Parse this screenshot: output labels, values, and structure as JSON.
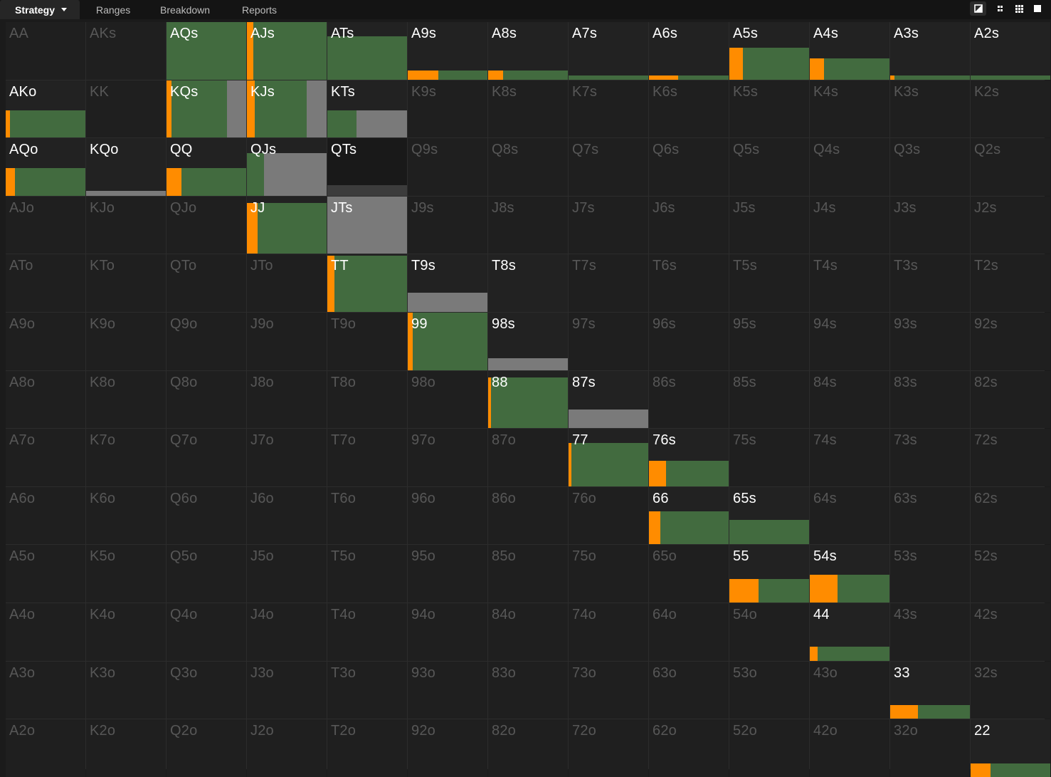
{
  "tabs": [
    {
      "label": "Strategy",
      "active": true,
      "has_dropdown": true
    },
    {
      "label": "Ranges",
      "active": false
    },
    {
      "label": "Breakdown",
      "active": false
    },
    {
      "label": "Reports",
      "active": false
    }
  ],
  "view_buttons": [
    {
      "icon": "contrast-square-icon",
      "active": true
    },
    {
      "icon": "compact-grid-icon",
      "active": false
    },
    {
      "icon": "grid-icon",
      "active": false
    },
    {
      "icon": "solid-square-icon",
      "active": false
    }
  ],
  "colors": {
    "raise": "#ff8c00",
    "call": "#426b3f",
    "fold": "#7a7a7a",
    "fold_dark": "#3c3c3c",
    "cell_bg": "#222222",
    "grid_line": "#2c2c2c",
    "text_on": "#ffffff",
    "text_off": "#575757"
  },
  "grid": {
    "rows": [
      [
        "AA",
        "AKs",
        "AQs",
        "AJs",
        "ATs",
        "A9s",
        "A8s",
        "A7s",
        "A6s",
        "A5s",
        "A4s",
        "A3s",
        "A2s"
      ],
      [
        "AKo",
        "KK",
        "KQs",
        "KJs",
        "KTs",
        "K9s",
        "K8s",
        "K7s",
        "K6s",
        "K5s",
        "K4s",
        "K3s",
        "K2s"
      ],
      [
        "AQo",
        "KQo",
        "QQ",
        "QJs",
        "QTs",
        "Q9s",
        "Q8s",
        "Q7s",
        "Q6s",
        "Q5s",
        "Q4s",
        "Q3s",
        "Q2s"
      ],
      [
        "AJo",
        "KJo",
        "QJo",
        "JJ",
        "JTs",
        "J9s",
        "J8s",
        "J7s",
        "J6s",
        "J5s",
        "J4s",
        "J3s",
        "J2s"
      ],
      [
        "ATo",
        "KTo",
        "QTo",
        "JTo",
        "TT",
        "T9s",
        "T8s",
        "T7s",
        "T6s",
        "T5s",
        "T4s",
        "T3s",
        "T2s"
      ],
      [
        "A9o",
        "K9o",
        "Q9o",
        "J9o",
        "T9o",
        "99",
        "98s",
        "97s",
        "96s",
        "95s",
        "94s",
        "93s",
        "92s"
      ],
      [
        "A8o",
        "K8o",
        "Q8o",
        "J8o",
        "T8o",
        "98o",
        "88",
        "87s",
        "86s",
        "85s",
        "84s",
        "83s",
        "82s"
      ],
      [
        "A7o",
        "K7o",
        "Q7o",
        "J7o",
        "T7o",
        "97o",
        "87o",
        "77",
        "76s",
        "75s",
        "74s",
        "73s",
        "72s"
      ],
      [
        "A6o",
        "K6o",
        "Q6o",
        "J6o",
        "T6o",
        "96o",
        "86o",
        "76o",
        "66",
        "65s",
        "64s",
        "63s",
        "62s"
      ],
      [
        "A5o",
        "K5o",
        "Q5o",
        "J5o",
        "T5o",
        "95o",
        "85o",
        "75o",
        "65o",
        "55",
        "54s",
        "53s",
        "52s"
      ],
      [
        "A4o",
        "K4o",
        "Q4o",
        "J4o",
        "T4o",
        "94o",
        "84o",
        "74o",
        "64o",
        "54o",
        "44",
        "43s",
        "42s"
      ],
      [
        "A3o",
        "K3o",
        "Q3o",
        "J3o",
        "T3o",
        "93o",
        "83o",
        "73o",
        "63o",
        "53o",
        "43o",
        "33",
        "32s"
      ],
      [
        "A2o",
        "K2o",
        "Q2o",
        "J2o",
        "T2o",
        "92o",
        "82o",
        "72o",
        "62o",
        "52o",
        "42o",
        "32o",
        "22"
      ]
    ],
    "strategy": {
      "AQs": {
        "freq": 1.0,
        "raise": 0.0,
        "call": 1.0,
        "fold": 0.0
      },
      "AJs": {
        "freq": 1.0,
        "raise": 0.08,
        "call": 0.92,
        "fold": 0.0
      },
      "ATs": {
        "freq": 0.75,
        "raise": 0.0,
        "call": 1.0,
        "fold": 0.0
      },
      "A9s": {
        "freq": 0.16,
        "raise": 0.38,
        "call": 0.62,
        "fold": 0.0
      },
      "A8s": {
        "freq": 0.16,
        "raise": 0.19,
        "call": 0.81,
        "fold": 0.0
      },
      "A7s": {
        "freq": 0.07,
        "raise": 0.0,
        "call": 1.0,
        "fold": 0.0
      },
      "A6s": {
        "freq": 0.07,
        "raise": 0.37,
        "call": 0.63,
        "fold": 0.0
      },
      "A5s": {
        "freq": 0.55,
        "raise": 0.17,
        "call": 0.83,
        "fold": 0.0
      },
      "A4s": {
        "freq": 0.37,
        "raise": 0.18,
        "call": 0.82,
        "fold": 0.0
      },
      "A3s": {
        "freq": 0.07,
        "raise": 0.05,
        "call": 0.95,
        "fold": 0.0
      },
      "A2s": {
        "freq": 0.07,
        "raise": 0.0,
        "call": 1.0,
        "fold": 0.0
      },
      "AKo": {
        "freq": 0.48,
        "raise": 0.05,
        "call": 0.95,
        "fold": 0.0
      },
      "KQs": {
        "freq": 1.0,
        "raise": 0.06,
        "call": 0.7,
        "fold": 0.24
      },
      "KJs": {
        "freq": 1.0,
        "raise": 0.1,
        "call": 0.65,
        "fold": 0.25
      },
      "KTs": {
        "freq": 0.48,
        "raise": 0.0,
        "call": 0.37,
        "fold": 0.63
      },
      "AQo": {
        "freq": 0.48,
        "raise": 0.12,
        "call": 0.88,
        "fold": 0.0
      },
      "KQo": {
        "freq": 0.09,
        "raise": 0.0,
        "call": 0.0,
        "fold": 1.0
      },
      "QQ": {
        "freq": 0.48,
        "raise": 0.19,
        "call": 0.81,
        "fold": 0.0
      },
      "QJs": {
        "freq": 0.74,
        "raise": 0.0,
        "call": 0.21,
        "fold": 0.79
      },
      "QTs": {
        "freq": 0.19,
        "raise": 0.0,
        "call": 0.0,
        "fold": 1.0,
        "fold_dark": true,
        "selected": true
      },
      "JJ": {
        "freq": 0.89,
        "raise": 0.13,
        "call": 0.87,
        "fold": 0.0
      },
      "JTs": {
        "freq": 1.0,
        "raise": 0.0,
        "call": 0.0,
        "fold": 1.0
      },
      "TT": {
        "freq": 0.98,
        "raise": 0.09,
        "call": 0.91,
        "fold": 0.0
      },
      "T9s": {
        "freq": 0.33,
        "raise": 0.0,
        "call": 0.0,
        "fold": 1.0
      },
      "T8s": {
        "freq": 0.0,
        "raise": 0.0,
        "call": 0.0,
        "fold": 0.0
      },
      "99": {
        "freq": 1.0,
        "raise": 0.06,
        "call": 0.94,
        "fold": 0.0
      },
      "98s": {
        "freq": 0.21,
        "raise": 0.0,
        "call": 0.0,
        "fold": 1.0
      },
      "88": {
        "freq": 0.89,
        "raise": 0.04,
        "call": 0.96,
        "fold": 0.0
      },
      "87s": {
        "freq": 0.33,
        "raise": 0.0,
        "call": 0.0,
        "fold": 1.0
      },
      "77": {
        "freq": 0.75,
        "raise": 0.04,
        "call": 0.96,
        "fold": 0.0
      },
      "76s": {
        "freq": 0.44,
        "raise": 0.21,
        "call": 0.79,
        "fold": 0.0
      },
      "66": {
        "freq": 0.57,
        "raise": 0.14,
        "call": 0.86,
        "fold": 0.0
      },
      "65s": {
        "freq": 0.42,
        "raise": 0.0,
        "call": 1.0,
        "fold": 0.0
      },
      "55": {
        "freq": 0.41,
        "raise": 0.37,
        "call": 0.63,
        "fold": 0.0
      },
      "54s": {
        "freq": 0.48,
        "raise": 0.35,
        "call": 0.65,
        "fold": 0.0
      },
      "44": {
        "freq": 0.25,
        "raise": 0.1,
        "call": 0.9,
        "fold": 0.0
      },
      "33": {
        "freq": 0.24,
        "raise": 0.35,
        "call": 0.65,
        "fold": 0.0
      },
      "22": {
        "freq": 0.24,
        "raise": 0.25,
        "call": 0.75,
        "fold": 0.0
      }
    }
  }
}
